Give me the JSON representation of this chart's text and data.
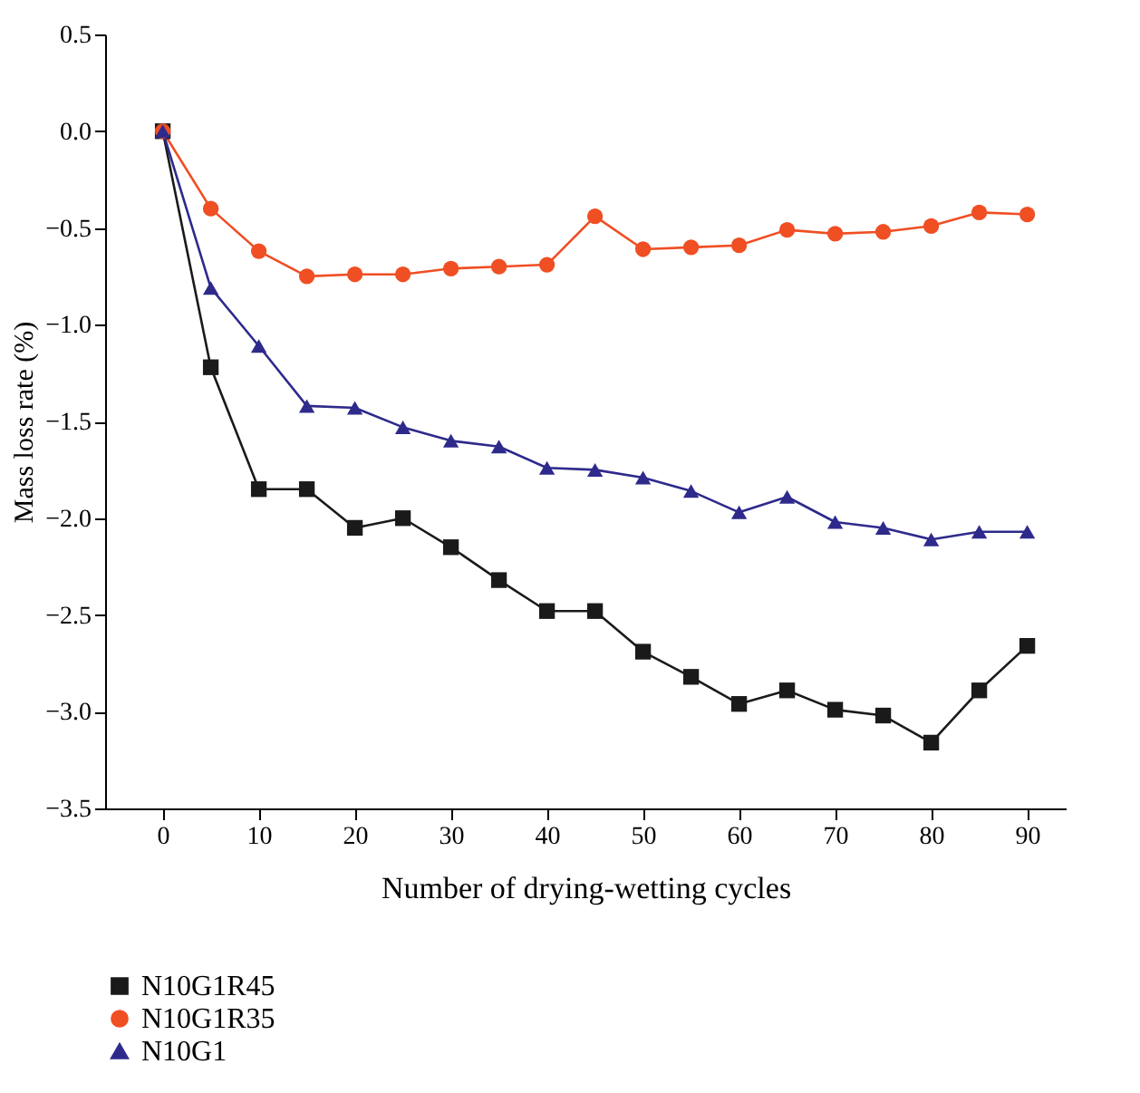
{
  "chart_data": {
    "type": "line",
    "xlabel": "Number of drying-wetting cycles",
    "ylabel": "Mass loss rate (%)",
    "x": [
      0,
      5,
      10,
      15,
      20,
      25,
      30,
      35,
      40,
      45,
      50,
      55,
      60,
      65,
      70,
      75,
      80,
      85,
      90
    ],
    "series": [
      {
        "name": "N10G1R45",
        "color": "#1a1a1a",
        "marker": "square",
        "values": [
          0,
          -1.22,
          -1.85,
          -1.85,
          -2.05,
          -2.0,
          -2.15,
          -2.32,
          -2.48,
          -2.48,
          -2.69,
          -2.82,
          -2.96,
          -2.89,
          -2.99,
          -3.02,
          -3.16,
          -2.89,
          -2.66
        ]
      },
      {
        "name": "N10G1R35",
        "color": "#f04e23",
        "marker": "circle",
        "values": [
          0,
          -0.4,
          -0.62,
          -0.75,
          -0.74,
          -0.74,
          -0.71,
          -0.7,
          -0.69,
          -0.44,
          -0.61,
          -0.6,
          -0.59,
          -0.51,
          -0.53,
          -0.52,
          -0.49,
          -0.42,
          -0.43
        ]
      },
      {
        "name": "N10G1",
        "color": "#2e2a8c",
        "marker": "triangle",
        "values": [
          0,
          -0.81,
          -1.11,
          -1.42,
          -1.43,
          -1.53,
          -1.6,
          -1.63,
          -1.74,
          -1.75,
          -1.79,
          -1.86,
          -1.97,
          -1.89,
          -2.02,
          -2.05,
          -2.11,
          -2.07,
          -2.07
        ]
      }
    ],
    "xlim": [
      -6,
      94
    ],
    "xticks": [
      0,
      10,
      20,
      30,
      40,
      50,
      60,
      70,
      80,
      90
    ],
    "ylim": [
      -3.5,
      0.5
    ],
    "yticks": [
      -3.5,
      {
        "value": -3,
        "label": "−3.0"
      },
      -2.5,
      {
        "value": -2,
        "label": "−2.0"
      },
      -1.5,
      {
        "value": -1,
        "label": "−1.0"
      },
      -0.5,
      {
        "value": 0,
        "label": "0.0"
      },
      0.5
    ],
    "grid": false,
    "legend": "bottom left",
    "line_style": "solid"
  }
}
